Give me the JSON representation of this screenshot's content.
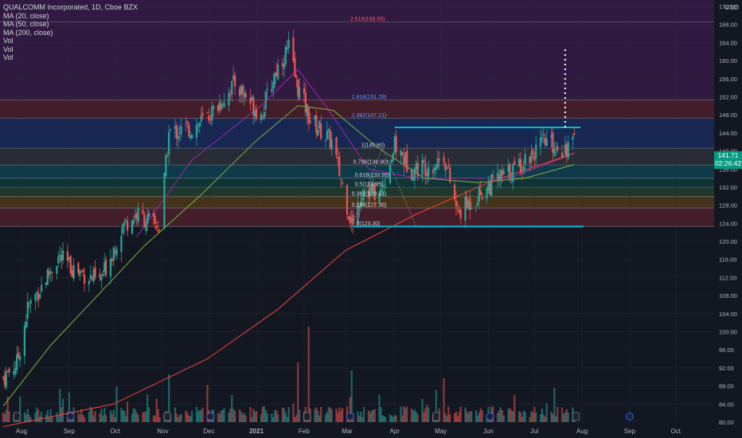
{
  "legend": {
    "symbol": "QUALCOMM Incorporated, 1D, Cboe BZX",
    "indicators": [
      "MA (20, close)",
      "MA (50, close)",
      "MA (200, close)",
      "Vol",
      "Vol",
      "Vol"
    ]
  },
  "currency": "USD",
  "last_price": {
    "price": "141.71",
    "countdown": "02:26:42"
  },
  "colors": {
    "up": "#26a69a",
    "down": "#ef5350",
    "ma20": "#9c27b0",
    "ma50": "#7cb342",
    "ma200": "#f44336",
    "fib": "#2196f3"
  },
  "chart_data": {
    "type": "candlestick",
    "x_tick_labels": [
      "Aug",
      "Sep",
      "Oct",
      "Nov",
      "Dec",
      "2021",
      "Feb",
      "Mar",
      "Apr",
      "May",
      "Jun",
      "Jul",
      "Aug",
      "Sep",
      "Oct"
    ],
    "y_tick_labels": [
      "80.00",
      "84.00",
      "88.00",
      "92.00",
      "96.00",
      "100.00",
      "104.00",
      "108.00",
      "112.00",
      "116.00",
      "120.00",
      "124.00",
      "128.00",
      "132.00",
      "136.00",
      "140.00",
      "144.00",
      "148.00",
      "152.00",
      "156.00",
      "160.00",
      "164.00",
      "168.00",
      "172.00"
    ],
    "ylim": [
      80,
      172
    ],
    "ohlc_keypoints": [
      {
        "date": "2020-07-20",
        "close": 89.8
      },
      {
        "date": "2020-07-29",
        "close": 93.0
      },
      {
        "date": "2020-08-05",
        "close": 105.0
      },
      {
        "date": "2020-08-25",
        "close": 116.5
      },
      {
        "date": "2020-09-04",
        "close": 114.0
      },
      {
        "date": "2020-09-21",
        "close": 111.0
      },
      {
        "date": "2020-10-06",
        "close": 123.5
      },
      {
        "date": "2020-10-15",
        "close": 126.0
      },
      {
        "date": "2020-10-30",
        "close": 123.0
      },
      {
        "date": "2020-11-05",
        "close": 144.0
      },
      {
        "date": "2020-11-20",
        "close": 145.0
      },
      {
        "date": "2020-12-02",
        "close": 148.0
      },
      {
        "date": "2020-12-18",
        "close": 155.0
      },
      {
        "date": "2021-01-04",
        "close": 148.0
      },
      {
        "date": "2021-01-14",
        "close": 158.0
      },
      {
        "date": "2021-01-22",
        "close": 163.0
      },
      {
        "date": "2021-01-27",
        "close": 155.0
      },
      {
        "date": "2021-02-05",
        "close": 147.0
      },
      {
        "date": "2021-02-19",
        "close": 142.0
      },
      {
        "date": "2021-03-04",
        "close": 124.0
      },
      {
        "date": "2021-03-12",
        "close": 132.0
      },
      {
        "date": "2021-03-22",
        "close": 130.0
      },
      {
        "date": "2021-04-01",
        "close": 141.0
      },
      {
        "date": "2021-04-12",
        "close": 136.0
      },
      {
        "date": "2021-04-26",
        "close": 137.0
      },
      {
        "date": "2021-05-03",
        "close": 139.0
      },
      {
        "date": "2021-05-12",
        "close": 126.0
      },
      {
        "date": "2021-05-21",
        "close": 129.0
      },
      {
        "date": "2021-06-04",
        "close": 133.0
      },
      {
        "date": "2021-06-18",
        "close": 136.0
      },
      {
        "date": "2021-07-01",
        "close": 140.0
      },
      {
        "date": "2021-07-09",
        "close": 142.0
      },
      {
        "date": "2021-07-19",
        "close": 140.5
      },
      {
        "date": "2021-07-27",
        "close": 141.71
      }
    ],
    "moving_averages": [
      {
        "name": "MA (20, close)",
        "points": [
          [
            "2020-10-15",
            121.0
          ],
          [
            "2020-11-20",
            138.0
          ],
          [
            "2021-01-04",
            150.0
          ],
          [
            "2021-01-28",
            158.0
          ],
          [
            "2021-02-15",
            150.0
          ],
          [
            "2021-03-15",
            136.0
          ],
          [
            "2021-04-15",
            134.0
          ],
          [
            "2021-05-15",
            134.0
          ],
          [
            "2021-06-15",
            134.0
          ],
          [
            "2021-07-27",
            139.5
          ]
        ]
      },
      {
        "name": "MA (50, close)",
        "points": [
          [
            "2020-07-20",
            83.5
          ],
          [
            "2020-08-20",
            97.0
          ],
          [
            "2020-09-25",
            110.0
          ],
          [
            "2020-10-20",
            119.0
          ],
          [
            "2020-11-25",
            130.0
          ],
          [
            "2020-12-31",
            142.0
          ],
          [
            "2021-01-28",
            150.0
          ],
          [
            "2021-02-20",
            149.0
          ],
          [
            "2021-03-20",
            141.0
          ],
          [
            "2021-04-20",
            134.0
          ],
          [
            "2021-05-25",
            133.0
          ],
          [
            "2021-06-25",
            134.0
          ],
          [
            "2021-07-27",
            137.0
          ]
        ]
      },
      {
        "name": "MA (200, close)",
        "points": [
          [
            "2020-07-20",
            79.0
          ],
          [
            "2020-09-30",
            84.0
          ],
          [
            "2020-11-30",
            94.0
          ],
          [
            "2021-01-15",
            105.0
          ],
          [
            "2021-02-28",
            118.0
          ],
          [
            "2021-04-15",
            126.0
          ],
          [
            "2021-06-01",
            133.0
          ],
          [
            "2021-07-27",
            139.5
          ]
        ]
      }
    ],
    "fib_levels": [
      {
        "ratio": "0",
        "price": 123.3,
        "label": "0(123.30)"
      },
      {
        "ratio": "0.236",
        "price": 127.38,
        "label": "0.236(127.38)"
      },
      {
        "ratio": "0.382",
        "price": 129.91,
        "label": "0.382(129.91)"
      },
      {
        "ratio": "0.5",
        "price": 131.95,
        "label": "0.5(131.95)"
      },
      {
        "ratio": "0.618",
        "price": 133.99,
        "label": "0.618(133.99)"
      },
      {
        "ratio": "0.786",
        "price": 136.9,
        "label": "0.786(136.90)"
      },
      {
        "ratio": "1",
        "price": 140.6,
        "label": "1(140.60)"
      },
      {
        "ratio": "1.382",
        "price": 147.21,
        "label": "1.382(147.21)"
      },
      {
        "ratio": "1.618",
        "price": 151.29,
        "label": "1.618(151.29)"
      },
      {
        "ratio": "2.618",
        "price": 168.59,
        "label": "2.618(168.59)"
      }
    ],
    "drawn_levels": [
      {
        "name": "resistance",
        "price": 145.2,
        "from": "2021-04-01",
        "to": "2021-07-31"
      },
      {
        "name": "support",
        "price": 123.3,
        "from": "2021-03-05",
        "to": "2021-08-02"
      }
    ],
    "projection": {
      "date": "2021-07-21",
      "from": 145.2,
      "to": 162.5
    }
  }
}
